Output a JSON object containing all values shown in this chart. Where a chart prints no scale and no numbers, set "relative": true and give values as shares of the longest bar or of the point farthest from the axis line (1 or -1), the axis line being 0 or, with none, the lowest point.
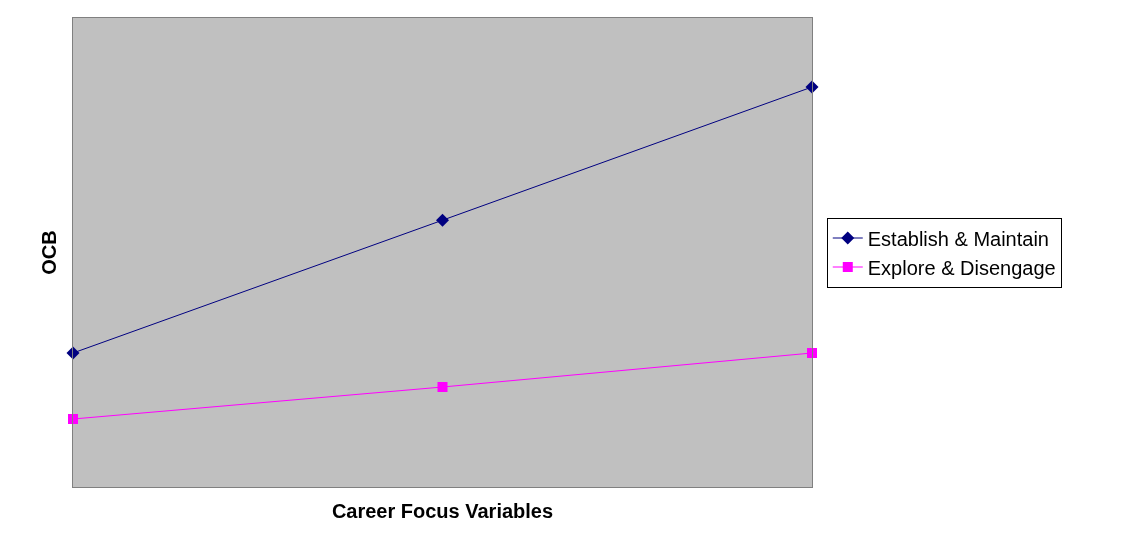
{
  "chart_data": {
    "type": "line",
    "relative": true,
    "xlabel": "Career Focus Variables",
    "ylabel": "OCB",
    "categories": [
      null,
      null,
      null
    ],
    "legend": "right",
    "grid": false,
    "line_style": "solid",
    "series": [
      {
        "name": "Establish & Maintain",
        "color": "#000080",
        "marker": "diamond",
        "values": [
          0.335,
          0.667,
          1
        ]
      },
      {
        "name": "Explore & Disengage",
        "color": "#ff00ff",
        "marker": "square",
        "values": [
          0.17,
          0.25,
          0.335
        ]
      }
    ]
  }
}
